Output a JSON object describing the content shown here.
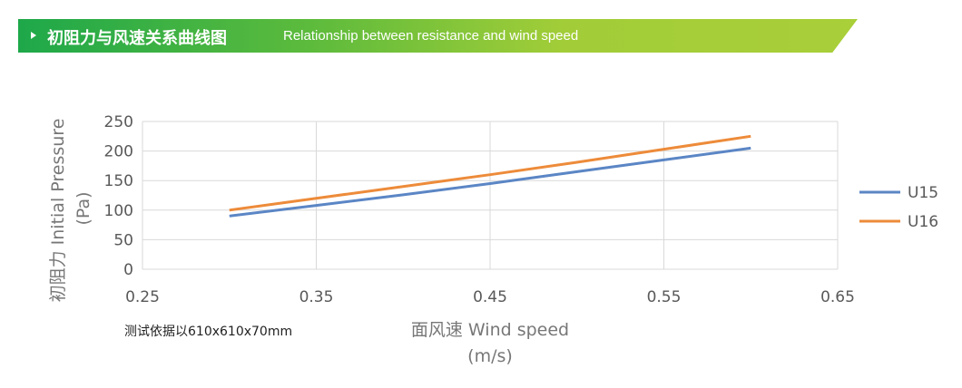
{
  "header": {
    "title_cn": "初阻力与风速关系曲线图",
    "title_en": "Relationship between resistance and wind speed"
  },
  "note": "测试依据以610x610x70mm",
  "chart_data": {
    "type": "line",
    "title": "初阻力与风速关系曲线图 Relationship between resistance and wind speed",
    "xlabel": "面风速 Wind speed",
    "xlabel_unit": "(m/s)",
    "ylabel": "初阻力 Initial Pressure",
    "ylabel_unit": "(Pa)",
    "xlim": [
      0.25,
      0.65
    ],
    "ylim": [
      0,
      250
    ],
    "xticks": [
      "0.25",
      "0.35",
      "0.45",
      "0.55",
      "0.65"
    ],
    "yticks": [
      "0",
      "50",
      "100",
      "150",
      "200",
      "250"
    ],
    "grid": true,
    "legend": "right",
    "x": [
      0.3,
      0.35,
      0.4,
      0.45,
      0.5,
      0.55,
      0.6
    ],
    "series": [
      {
        "name": "U15",
        "color": "#5b86c5",
        "values": [
          90,
          108,
          126,
          145,
          165,
          185,
          205
        ]
      },
      {
        "name": "U16",
        "color": "#ed8b3a",
        "values": [
          100,
          120,
          140,
          160,
          181,
          203,
          225
        ]
      }
    ]
  }
}
